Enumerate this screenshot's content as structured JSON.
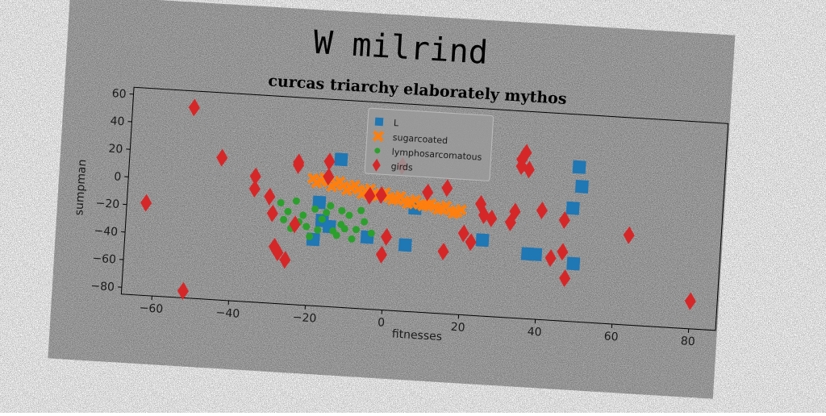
{
  "figure": {
    "suptitle": "W milrind",
    "background_color": "#808080",
    "noise": true
  },
  "chart_data": {
    "type": "scatter",
    "title": "curcas triarchy elaborately mythos",
    "xlabel": "fitnesses",
    "ylabel": "sumpman",
    "xlim": [
      -68,
      87
    ],
    "ylim": [
      -85,
      65
    ],
    "xticks": [
      -60,
      -40,
      -20,
      0,
      20,
      40,
      60,
      80
    ],
    "yticks": [
      -80,
      -60,
      -40,
      -20,
      0,
      20,
      40,
      60
    ],
    "grid": false,
    "legend_position": "upper-center",
    "series": [
      {
        "name": "L",
        "marker": "square",
        "color": "#1f77b4",
        "points": [
          [
            -13,
            22
          ],
          [
            -18,
            -10
          ],
          [
            -17,
            -23
          ],
          [
            -15,
            -27
          ],
          [
            -19,
            -37
          ],
          [
            -5,
            -33
          ],
          [
            5,
            -37
          ],
          [
            7,
            -10
          ],
          [
            25,
            -30
          ],
          [
            37,
            -38
          ],
          [
            39,
            -38
          ],
          [
            48,
            -3
          ],
          [
            49,
            27
          ],
          [
            50,
            13
          ],
          [
            49,
            -43
          ]
        ]
      },
      {
        "name": "sugarcoated",
        "marker": "x",
        "color": "#ff7f0e",
        "points": [
          [
            -20,
            7
          ],
          [
            -18,
            6
          ],
          [
            -16,
            5
          ],
          [
            -14,
            4
          ],
          [
            -12,
            3
          ],
          [
            -10,
            2
          ],
          [
            -8,
            1
          ],
          [
            -6,
            0
          ],
          [
            -4,
            -1
          ],
          [
            -2,
            -2
          ],
          [
            0,
            -3
          ],
          [
            2,
            -4
          ],
          [
            4,
            -5
          ],
          [
            6,
            -6
          ],
          [
            8,
            -7
          ],
          [
            10,
            -7
          ],
          [
            12,
            -8
          ],
          [
            14,
            -9
          ],
          [
            16,
            -10
          ],
          [
            18,
            -11
          ],
          [
            -19,
            4
          ],
          [
            -15,
            2
          ],
          [
            -11,
            0
          ],
          [
            -7,
            -2
          ],
          [
            -3,
            -3
          ],
          [
            1,
            -5
          ],
          [
            5,
            -7
          ],
          [
            9,
            -8
          ],
          [
            13,
            -10
          ],
          [
            17,
            -12
          ],
          [
            -17,
            8
          ],
          [
            -13,
            6
          ],
          [
            -9,
            4
          ],
          [
            -5,
            2
          ],
          [
            -1,
            0
          ],
          [
            3,
            -2
          ],
          [
            7,
            -4
          ],
          [
            11,
            -6
          ],
          [
            15,
            -7
          ],
          [
            19,
            -9
          ]
        ]
      },
      {
        "name": "lymphosarcomatous",
        "marker": "circle",
        "color": "#2ca02c",
        "points": [
          [
            -28,
            -12
          ],
          [
            -26,
            -18
          ],
          [
            -24,
            -10
          ],
          [
            -22,
            -20
          ],
          [
            -21,
            -28
          ],
          [
            -19,
            -15
          ],
          [
            -17,
            -22
          ],
          [
            -15,
            -12
          ],
          [
            -14,
            -30
          ],
          [
            -12,
            -25
          ],
          [
            -10,
            -18
          ],
          [
            -8,
            -28
          ],
          [
            -6,
            -22
          ],
          [
            -4,
            -30
          ],
          [
            -20,
            -35
          ],
          [
            -25,
            -30
          ],
          [
            -23,
            -25
          ],
          [
            -18,
            -30
          ],
          [
            -12,
            -15
          ],
          [
            -9,
            -35
          ],
          [
            -16,
            -17
          ],
          [
            -27,
            -24
          ],
          [
            -11,
            -28
          ],
          [
            -7,
            -14
          ],
          [
            -13,
            -33
          ]
        ]
      },
      {
        "name": "girds",
        "marker": "diamond",
        "color": "#d62728",
        "points": [
          [
            -52,
            53
          ],
          [
            -63,
            -18
          ],
          [
            -52,
            -80
          ],
          [
            -44,
            18
          ],
          [
            -35,
            6
          ],
          [
            -35,
            -3
          ],
          [
            -31,
            -8
          ],
          [
            -30,
            -20
          ],
          [
            -29,
            -44
          ],
          [
            -28,
            -48
          ],
          [
            -26,
            -53
          ],
          [
            -24,
            18
          ],
          [
            -24,
            16
          ],
          [
            -24,
            -27
          ],
          [
            -16,
            20
          ],
          [
            -16,
            9
          ],
          [
            -5,
            -3
          ],
          [
            -2,
            -2
          ],
          [
            -1,
            -45
          ],
          [
            0,
            -32
          ],
          [
            3,
            20
          ],
          [
            10,
            2
          ],
          [
            15,
            6
          ],
          [
            15,
            -40
          ],
          [
            20,
            -26
          ],
          [
            22,
            -32
          ],
          [
            24,
            -4
          ],
          [
            25,
            -12
          ],
          [
            27,
            -14
          ],
          [
            32,
            -16
          ],
          [
            33,
            -8
          ],
          [
            34,
            25
          ],
          [
            34,
            30
          ],
          [
            35,
            35
          ],
          [
            36,
            23
          ],
          [
            40,
            -6
          ],
          [
            43,
            -40
          ],
          [
            46,
            -35
          ],
          [
            46,
            -12
          ],
          [
            47,
            -54
          ],
          [
            63,
            -20
          ],
          [
            80,
            -65
          ]
        ]
      }
    ]
  }
}
